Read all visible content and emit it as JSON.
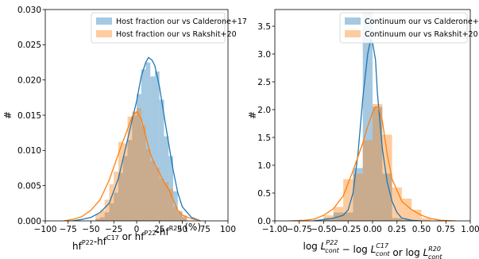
{
  "chart_data": [
    {
      "type": "bar",
      "panel": "left",
      "title": "",
      "xlabel": "hf$^{P22}$-hf$^{C17}$ or hf$^{P22}$-hf$^{R20}$ (%)",
      "xlabel_parts": [
        {
          "text": "hf",
          "sup": false
        },
        {
          "text": "P22",
          "sup": true
        },
        {
          "text": "-hf",
          "sup": false
        },
        {
          "text": "C17",
          "sup": true
        },
        {
          "text": " or hf",
          "sup": false
        },
        {
          "text": "P22",
          "sup": true
        },
        {
          "text": "-hf",
          "sup": false
        },
        {
          "text": "R20",
          "sup": true
        },
        {
          "text": " (%)",
          "sup": false
        }
      ],
      "ylabel": "#",
      "xlim": [
        -100,
        100
      ],
      "ylim": [
        0,
        0.03
      ],
      "xticks": [
        -100,
        -75,
        -50,
        -25,
        0,
        25,
        50,
        75,
        100
      ],
      "xtick_labels": [
        "−100",
        "−75",
        "−50",
        "−25",
        "0",
        "25",
        "50",
        "75",
        "100"
      ],
      "yticks": [
        0,
        0.005,
        0.01,
        0.015,
        0.02,
        0.025,
        0.03
      ],
      "ytick_labels": [
        "0.000",
        "0.005",
        "0.010",
        "0.015",
        "0.020",
        "0.025",
        "0.030"
      ],
      "legend_position": "top-right",
      "series": [
        {
          "name": "Host fraction our vs Calderone+17",
          "color": "#1f77b4",
          "bins": [
            [
              -45,
              -40,
              0.0003
            ],
            [
              -40,
              -35,
              0.0005
            ],
            [
              -35,
              -30,
              0.0012
            ],
            [
              -30,
              -25,
              0.0025
            ],
            [
              -25,
              -20,
              0.004
            ],
            [
              -20,
              -15,
              0.0068
            ],
            [
              -15,
              -10,
              0.0092
            ],
            [
              -10,
              -5,
              0.0115
            ],
            [
              -5,
              0,
              0.015
            ],
            [
              0,
              5,
              0.018
            ],
            [
              5,
              10,
              0.0215
            ],
            [
              10,
              15,
              0.0225
            ],
            [
              15,
              20,
              0.0205
            ],
            [
              20,
              25,
              0.0212
            ],
            [
              25,
              30,
              0.0172
            ],
            [
              30,
              35,
              0.012
            ],
            [
              35,
              40,
              0.0092
            ],
            [
              40,
              45,
              0.0042
            ],
            [
              45,
              50,
              0.0014
            ],
            [
              50,
              55,
              0.0005
            ]
          ],
          "kde": [
            [
              -70,
              0.0
            ],
            [
              -60,
              0.0002
            ],
            [
              -50,
              0.0005
            ],
            [
              -40,
              0.0012
            ],
            [
              -30,
              0.0025
            ],
            [
              -20,
              0.006
            ],
            [
              -10,
              0.0115
            ],
            [
              0,
              0.017
            ],
            [
              5,
              0.0205
            ],
            [
              10,
              0.0225
            ],
            [
              13,
              0.0232
            ],
            [
              17,
              0.0228
            ],
            [
              20,
              0.022
            ],
            [
              25,
              0.019
            ],
            [
              30,
              0.015
            ],
            [
              35,
              0.011
            ],
            [
              40,
              0.0072
            ],
            [
              45,
              0.004
            ],
            [
              50,
              0.002
            ],
            [
              60,
              0.0005
            ],
            [
              70,
              0.0
            ]
          ]
        },
        {
          "name": "Host fraction our vs Rakshit+20",
          "color": "#ff7f0e",
          "bins": [
            [
              -45,
              -40,
              0.001
            ],
            [
              -40,
              -35,
              0.0015
            ],
            [
              -35,
              -30,
              0.003
            ],
            [
              -30,
              -25,
              0.0052
            ],
            [
              -25,
              -20,
              0.007
            ],
            [
              -20,
              -15,
              0.0112
            ],
            [
              -15,
              -10,
              0.011
            ],
            [
              -10,
              -5,
              0.0148
            ],
            [
              -5,
              0,
              0.0155
            ],
            [
              0,
              5,
              0.016
            ],
            [
              5,
              10,
              0.0135
            ],
            [
              10,
              15,
              0.0102
            ],
            [
              15,
              20,
              0.0085
            ],
            [
              20,
              25,
              0.0075
            ],
            [
              25,
              30,
              0.006
            ],
            [
              30,
              35,
              0.0055
            ],
            [
              35,
              40,
              0.0045
            ],
            [
              40,
              45,
              0.002
            ],
            [
              45,
              50,
              0.0012
            ],
            [
              50,
              55,
              0.0008
            ]
          ],
          "kde": [
            [
              -80,
              0.0
            ],
            [
              -70,
              0.0002
            ],
            [
              -60,
              0.0006
            ],
            [
              -50,
              0.0015
            ],
            [
              -40,
              0.003
            ],
            [
              -30,
              0.0058
            ],
            [
              -20,
              0.0095
            ],
            [
              -10,
              0.013
            ],
            [
              -5,
              0.0148
            ],
            [
              0,
              0.0155
            ],
            [
              5,
              0.0145
            ],
            [
              10,
              0.012
            ],
            [
              15,
              0.0095
            ],
            [
              20,
              0.008
            ],
            [
              25,
              0.0068
            ],
            [
              30,
              0.0055
            ],
            [
              35,
              0.0045
            ],
            [
              40,
              0.003
            ],
            [
              45,
              0.0015
            ],
            [
              50,
              0.0008
            ],
            [
              60,
              0.0003
            ],
            [
              70,
              0.0
            ]
          ]
        }
      ]
    },
    {
      "type": "bar",
      "panel": "right",
      "title": "",
      "xlabel": "log L$_{cont}^{P22}$ − log L$_{cont}^{C17}$ or log L$_{cont}^{R20}$",
      "xlabel_parts": [
        {
          "text": "log ",
          "kind": "text"
        },
        {
          "text": "L",
          "kind": "italic",
          "sub": "cont",
          "sup": "P22"
        },
        {
          "text": " − log ",
          "kind": "text"
        },
        {
          "text": "L",
          "kind": "italic",
          "sub": "cont",
          "sup": "C17"
        },
        {
          "text": " or log ",
          "kind": "text"
        },
        {
          "text": "L",
          "kind": "italic",
          "sub": "cont",
          "sup": "R20"
        }
      ],
      "ylabel": "#",
      "xlim": [
        -1.0,
        1.0
      ],
      "ylim": [
        0,
        3.8
      ],
      "xticks": [
        -1.0,
        -0.75,
        -0.5,
        -0.25,
        0.0,
        0.25,
        0.5,
        0.75,
        1.0
      ],
      "xtick_labels": [
        "−1.00",
        "−0.75",
        "−0.50",
        "−0.25",
        "0.00",
        "0.25",
        "0.50",
        "0.75",
        "1.00"
      ],
      "yticks": [
        0,
        0.5,
        1.0,
        1.5,
        2.0,
        2.5,
        3.0,
        3.5
      ],
      "ytick_labels": [
        "0.0",
        "0.5",
        "1.0",
        "1.5",
        "2.0",
        "2.5",
        "3.0",
        "3.5"
      ],
      "legend_position": "top-right",
      "series": [
        {
          "name": "Continuum our vs Calderone+17",
          "color": "#1f77b4",
          "bins": [
            [
              -0.5,
              -0.4,
              0.05
            ],
            [
              -0.4,
              -0.3,
              0.15
            ],
            [
              -0.3,
              -0.2,
              0.15
            ],
            [
              -0.2,
              -0.1,
              0.95
            ],
            [
              -0.1,
              0.0,
              3.75
            ],
            [
              0.0,
              0.1,
              2.05
            ],
            [
              0.1,
              0.2,
              0.85
            ],
            [
              0.2,
              0.3,
              0.05
            ],
            [
              0.3,
              0.4,
              0.02
            ]
          ],
          "kde": [
            [
              -0.6,
              0.0
            ],
            [
              -0.4,
              0.05
            ],
            [
              -0.3,
              0.1
            ],
            [
              -0.25,
              0.2
            ],
            [
              -0.2,
              0.5
            ],
            [
              -0.15,
              1.2
            ],
            [
              -0.1,
              2.2
            ],
            [
              -0.05,
              3.0
            ],
            [
              -0.02,
              3.25
            ],
            [
              0.0,
              3.2
            ],
            [
              0.03,
              2.9
            ],
            [
              0.05,
              2.3
            ],
            [
              0.1,
              1.3
            ],
            [
              0.15,
              0.7
            ],
            [
              0.2,
              0.35
            ],
            [
              0.25,
              0.15
            ],
            [
              0.3,
              0.05
            ],
            [
              0.4,
              0.01
            ],
            [
              0.5,
              0.0
            ]
          ]
        },
        {
          "name": "Continuum our vs Rakshit+20",
          "color": "#ff7f0e",
          "bins": [
            [
              -0.6,
              -0.5,
              0.02
            ],
            [
              -0.5,
              -0.4,
              0.1
            ],
            [
              -0.4,
              -0.3,
              0.25
            ],
            [
              -0.3,
              -0.2,
              0.75
            ],
            [
              -0.2,
              -0.1,
              0.85
            ],
            [
              -0.1,
              0.0,
              1.45
            ],
            [
              0.0,
              0.1,
              2.1
            ],
            [
              0.1,
              0.2,
              1.55
            ],
            [
              0.2,
              0.3,
              0.6
            ],
            [
              0.3,
              0.4,
              0.4
            ],
            [
              0.4,
              0.5,
              0.2
            ],
            [
              0.5,
              0.6,
              0.05
            ]
          ],
          "kde": [
            [
              -0.85,
              0.0
            ],
            [
              -0.7,
              0.01
            ],
            [
              -0.6,
              0.03
            ],
            [
              -0.5,
              0.1
            ],
            [
              -0.4,
              0.22
            ],
            [
              -0.3,
              0.45
            ],
            [
              -0.2,
              0.9
            ],
            [
              -0.1,
              1.4
            ],
            [
              -0.05,
              1.7
            ],
            [
              0.0,
              1.95
            ],
            [
              0.03,
              2.05
            ],
            [
              0.06,
              2.05
            ],
            [
              0.1,
              1.8
            ],
            [
              0.15,
              1.2
            ],
            [
              0.2,
              0.75
            ],
            [
              0.3,
              0.35
            ],
            [
              0.4,
              0.2
            ],
            [
              0.5,
              0.1
            ],
            [
              0.6,
              0.04
            ],
            [
              0.7,
              0.01
            ],
            [
              0.85,
              0.0
            ]
          ]
        }
      ]
    }
  ]
}
